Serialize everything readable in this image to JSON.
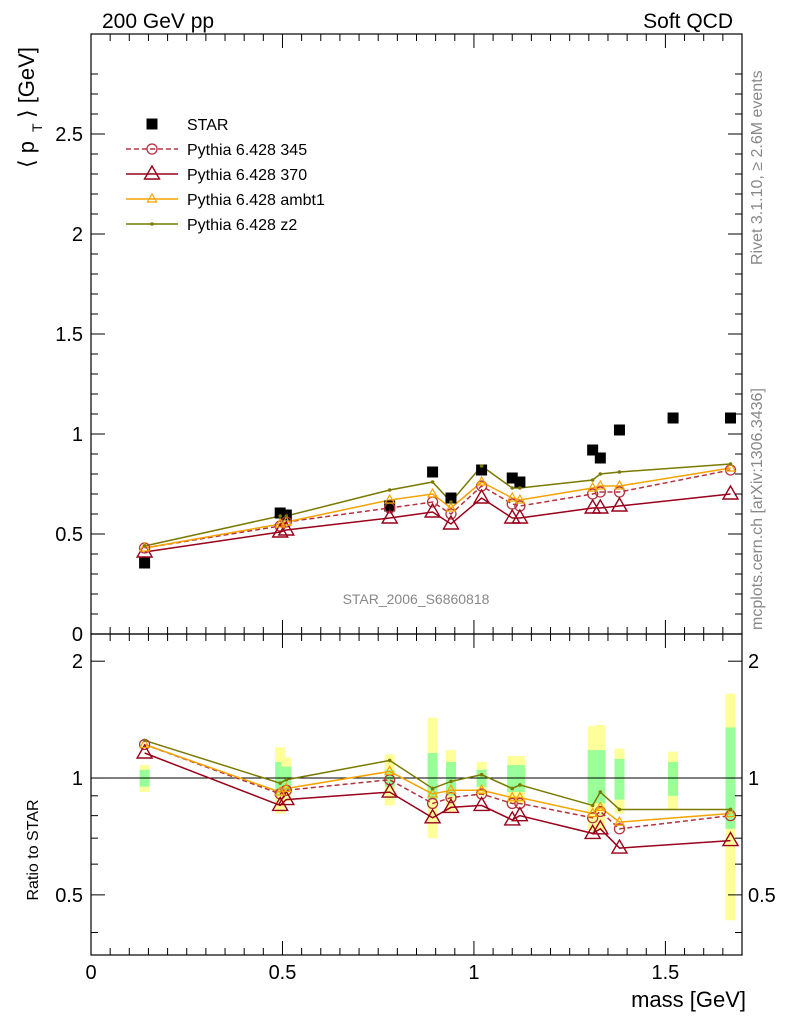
{
  "header": {
    "left": "200 GeV pp",
    "right": "Soft QCD"
  },
  "side_labels": {
    "rivet": "Rivet 3.1.10, ≥ 2.6M events",
    "mcplots": "mcplots.cern.ch [arXiv:1306.3436]"
  },
  "watermark": "STAR_2006_S6860818",
  "colors": {
    "star": "#000000",
    "p345": "#b3333f",
    "p370": "#99001a",
    "ambt1": "#f5a300",
    "z2": "#7a7a00",
    "band_inner": "#99ff99",
    "band_outer": "#ffff99"
  },
  "chart_data": [
    {
      "type": "scatter",
      "panel": "main",
      "title": "",
      "xlabel": "mass [GeV]",
      "ylabel": "⟨ p_T ⟩ [GeV]",
      "xlim": [
        0,
        1.7
      ],
      "ylim": [
        0,
        3.0
      ],
      "yticks": [
        0,
        0.5,
        1,
        1.5,
        2,
        2.5
      ],
      "ytick_labels": [
        "0",
        "0.5",
        "1",
        "1.5",
        "2",
        "2.5"
      ],
      "legend_position": "top-left",
      "x": [
        0.14,
        0.494,
        0.51,
        0.78,
        0.892,
        0.94,
        1.02,
        1.1,
        1.12,
        1.31,
        1.33,
        1.38,
        1.52,
        1.67
      ],
      "series": [
        {
          "name": "STAR",
          "style": "square",
          "values": [
            0.355,
            0.605,
            0.595,
            0.64,
            0.81,
            0.68,
            0.82,
            0.78,
            0.76,
            0.92,
            0.88,
            1.02,
            1.08,
            1.08
          ]
        },
        {
          "name": "Pythia 6.428 345",
          "style": "circle-dashed",
          "x": [
            0.14,
            0.494,
            0.51,
            0.78,
            0.892,
            0.94,
            1.02,
            1.1,
            1.12,
            1.31,
            1.33,
            1.38,
            1.67
          ],
          "values": [
            0.43,
            0.54,
            0.56,
            0.63,
            0.66,
            0.6,
            0.74,
            0.65,
            0.64,
            0.7,
            0.71,
            0.71,
            0.82
          ]
        },
        {
          "name": "Pythia 6.428 370",
          "style": "triangle-open",
          "x": [
            0.14,
            0.494,
            0.51,
            0.78,
            0.892,
            0.94,
            1.02,
            1.1,
            1.12,
            1.31,
            1.33,
            1.38,
            1.67
          ],
          "values": [
            0.41,
            0.51,
            0.52,
            0.58,
            0.61,
            0.55,
            0.68,
            0.58,
            0.58,
            0.63,
            0.63,
            0.64,
            0.7
          ]
        },
        {
          "name": "Pythia 6.428 ambt1",
          "style": "triangle-small",
          "x": [
            0.14,
            0.494,
            0.51,
            0.78,
            0.892,
            0.94,
            1.02,
            1.1,
            1.12,
            1.31,
            1.33,
            1.38,
            1.67
          ],
          "values": [
            0.43,
            0.55,
            0.56,
            0.67,
            0.7,
            0.63,
            0.76,
            0.68,
            0.67,
            0.73,
            0.74,
            0.74,
            0.83
          ]
        },
        {
          "name": "Pythia 6.428 z2",
          "style": "dot",
          "x": [
            0.14,
            0.494,
            0.51,
            0.78,
            0.892,
            0.94,
            1.02,
            1.1,
            1.12,
            1.31,
            1.33,
            1.38,
            1.67
          ],
          "values": [
            0.44,
            0.59,
            0.59,
            0.72,
            0.76,
            0.66,
            0.84,
            0.73,
            0.73,
            0.77,
            0.8,
            0.81,
            0.85
          ]
        }
      ]
    },
    {
      "type": "line",
      "panel": "ratio",
      "xlabel": "mass [GeV]",
      "ylabel": "Ratio to STAR",
      "xlim": [
        0,
        1.7
      ],
      "ylim": [
        0.35,
        2.35
      ],
      "scale": "log",
      "yticks": [
        0.5,
        1,
        2
      ],
      "ytick_labels": [
        "0.5",
        "1",
        "2"
      ],
      "xticks": [
        0,
        0.5,
        1,
        1.5
      ],
      "xtick_labels": [
        "0",
        "0.5",
        "1",
        "1.5"
      ],
      "reference": 1,
      "bands": {
        "x": [
          0.14,
          0.494,
          0.51,
          0.78,
          0.892,
          0.94,
          1.02,
          1.1,
          1.12,
          1.31,
          1.33,
          1.38,
          1.52,
          1.67
        ],
        "inner_low": [
          0.95,
          0.9,
          0.93,
          0.95,
          0.88,
          0.9,
          0.95,
          0.92,
          0.92,
          0.86,
          0.86,
          0.88,
          0.9,
          0.74
        ],
        "inner_high": [
          1.05,
          1.1,
          1.07,
          1.05,
          1.16,
          1.1,
          1.05,
          1.08,
          1.08,
          1.18,
          1.18,
          1.12,
          1.1,
          1.35
        ],
        "outer_low": [
          0.92,
          0.81,
          0.87,
          0.85,
          0.7,
          0.82,
          0.9,
          0.86,
          0.86,
          0.73,
          0.73,
          0.81,
          0.83,
          0.43
        ],
        "outer_high": [
          1.08,
          1.2,
          1.13,
          1.15,
          1.43,
          1.18,
          1.1,
          1.14,
          1.14,
          1.36,
          1.37,
          1.19,
          1.17,
          1.65
        ]
      },
      "series": [
        {
          "name": "Pythia 6.428 345",
          "values": [
            1.22,
            0.91,
            0.93,
            0.99,
            0.86,
            0.89,
            0.91,
            0.86,
            0.86,
            0.79,
            0.82,
            0.74,
            null,
            0.8
          ]
        },
        {
          "name": "Pythia 6.428 370",
          "values": [
            1.16,
            0.85,
            0.88,
            0.92,
            0.79,
            0.84,
            0.85,
            0.78,
            0.8,
            0.72,
            0.74,
            0.66,
            null,
            0.69
          ]
        },
        {
          "name": "Pythia 6.428 ambt1",
          "values": [
            1.22,
            0.92,
            0.94,
            1.04,
            0.91,
            0.93,
            0.93,
            0.89,
            0.89,
            0.81,
            0.84,
            0.77,
            null,
            0.81
          ]
        },
        {
          "name": "Pythia 6.428 z2",
          "values": [
            1.25,
            0.97,
            0.99,
            1.11,
            0.94,
            0.98,
            1.02,
            0.94,
            0.96,
            0.85,
            0.92,
            0.83,
            null,
            0.83
          ]
        }
      ]
    }
  ]
}
